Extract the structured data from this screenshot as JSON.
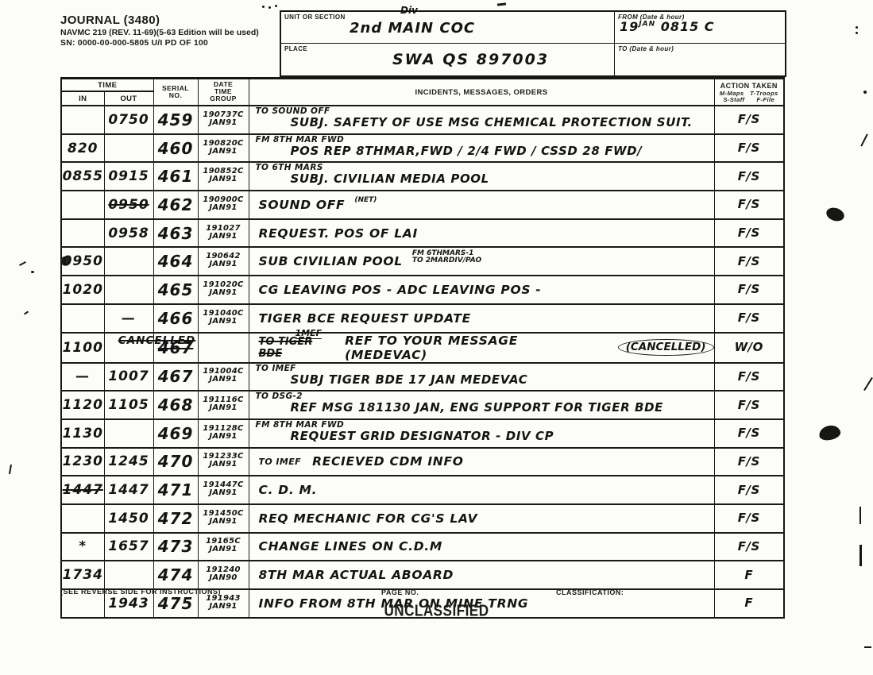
{
  "form": {
    "title": "JOURNAL (3480)",
    "subtitle": "NAVMC 219 (REV. 11-69)(5-63 Edition will be used)",
    "sn_line": "SN: 0000-00-000-5805   U/I   PD OF 100",
    "unit_label": "UNIT OR SECTION",
    "unit_value_small": "Div",
    "unit_value": "2nd MAIN COC",
    "place_label": "PLACE",
    "place_value": "SWA QS 897003",
    "from_label": "FROM (Date & hour)",
    "from_day": "19",
    "from_month": "JAN",
    "from_time": "0815 C",
    "to_label": "TO (Date & hour)"
  },
  "table": {
    "time_header": "TIME",
    "in_header": "IN",
    "out_header": "OUT",
    "serial_header": "SERIAL\nNO.",
    "dtg_header": "DATE\nTIME\nGROUP",
    "incidents_header": "INCIDENTS, MESSAGES, ORDERS",
    "action_header": "ACTION TAKEN",
    "action_legend": "M-Maps   T-Troops\nS-Staff      F-File",
    "rows": [
      {
        "in": "",
        "out": "0750",
        "serial": "459",
        "dtg": "190737C\nJAN91",
        "pre": "TO SOUND OFF",
        "main": "SUBJ. SAFETY OF USE MSG CHEMICAL PROTECTION SUIT.",
        "action": "F/S"
      },
      {
        "in": "820",
        "out": "",
        "serial": "460",
        "dtg": "190820C\nJAN91",
        "pre": "FM 8TH MAR FWD",
        "main": "POS REP 8THMAR,FWD / 2/4 FWD / CSSD 28 FWD/",
        "action": "F/S"
      },
      {
        "in": "0855",
        "out": "0915",
        "serial": "461",
        "dtg": "190852C\nJAN91",
        "pre": "TO 6TH MARS",
        "main": "SUBJ. CIVILIAN MEDIA POOL",
        "action": "F/S"
      },
      {
        "in": "",
        "out": "0950",
        "out_struck": true,
        "serial": "462",
        "dtg": "190900C\nJAN91",
        "main": "SOUND OFF",
        "note": "(NET)",
        "action": "F/S"
      },
      {
        "in": "",
        "out": "0958",
        "serial": "463",
        "dtg": "191027\nJAN91",
        "main": "REQUEST. POS OF LAI",
        "action": "F/S"
      },
      {
        "in": "0950",
        "in_blot": true,
        "out": "",
        "serial": "464",
        "dtg": "190642\nJAN91",
        "main": "SUB CIVILIAN POOL",
        "note": "FM 6THMARS-1\nTO 2MARDIV/PAO",
        "action": "F/S"
      },
      {
        "in": "1020",
        "out": "",
        "serial": "465",
        "dtg": "191020C\nJAN91",
        "main": "CG LEAVING POS - ADC LEAVING POS -",
        "action": "F/S"
      },
      {
        "in": "",
        "out": "—",
        "serial": "466",
        "dtg": "191040C\nJAN91",
        "main": "TIGER BCE REQUEST UPDATE",
        "action": "F/S"
      },
      {
        "in": "1100",
        "out": "CANCELLED",
        "out_span": true,
        "serial": "467",
        "serial_struck": true,
        "dtg": "",
        "above": "1MEF",
        "struck": "TO TIGER BDE",
        "main": "REF TO YOUR MESSAGE (MEDEVAC)",
        "circled": "(CANCELLED)",
        "action": "W/O"
      },
      {
        "in": "—",
        "out": "1007",
        "serial": "467",
        "dtg": "191004C\nJAN91",
        "pre": "TO IMEF",
        "main": "SUBJ TIGER BDE 17 JAN MEDEVAC",
        "action": "F/S"
      },
      {
        "in": "1120",
        "out": "1105",
        "serial": "468",
        "dtg": "191116C\nJAN91",
        "pre": "TO DSG-2",
        "main": "REF MSG 181130 JAN, ENG SUPPORT FOR TIGER BDE",
        "action": "F/S"
      },
      {
        "in": "1130",
        "out": "",
        "serial": "469",
        "dtg": "191128C\nJAN91",
        "pre": "FM 8TH MAR FWD",
        "main": "REQUEST GRID DESIGNATOR - DIV CP",
        "action": "F/S"
      },
      {
        "in": "1230",
        "out": "1245",
        "serial": "470",
        "dtg": "191233C\nJAN91",
        "pre": "TO IMEF",
        "inline": true,
        "main": "RECIEVED CDM INFO",
        "action": "F/S"
      },
      {
        "in": "1447",
        "in_struck": true,
        "out": "1447",
        "serial": "471",
        "dtg": "191447C\nJAN91",
        "main": "C. D. M.",
        "action": "F/S"
      },
      {
        "in": "",
        "out": "1450",
        "serial": "472",
        "dtg": "191450C\nJAN91",
        "main": "REQ MECHANIC FOR CG'S LAV",
        "action": "F/S"
      },
      {
        "in": "*",
        "out": "1657",
        "serial": "473",
        "dtg": "19165C\nJAN91",
        "main": "CHANGE LINES ON C.D.M",
        "action": "F/S"
      },
      {
        "in": "1734",
        "out": "",
        "serial": "474",
        "dtg": "191240\nJAN90",
        "main": "8TH MAR ACTUAL ABOARD",
        "action": "F"
      },
      {
        "in": "",
        "out": "1943",
        "serial": "475",
        "dtg": "191943\nJAN91",
        "main": "INFO FROM 8TH MAR ON MINE TRNG",
        "action": "F"
      }
    ]
  },
  "footer": {
    "instructions": "(SEE REVERSE SIDE FOR INSTRUCTIONS)",
    "page_no_label": "PAGE NO.",
    "classification_label": "CLASSIFICATION:",
    "classification_value": "UNCLASSIFIED"
  }
}
